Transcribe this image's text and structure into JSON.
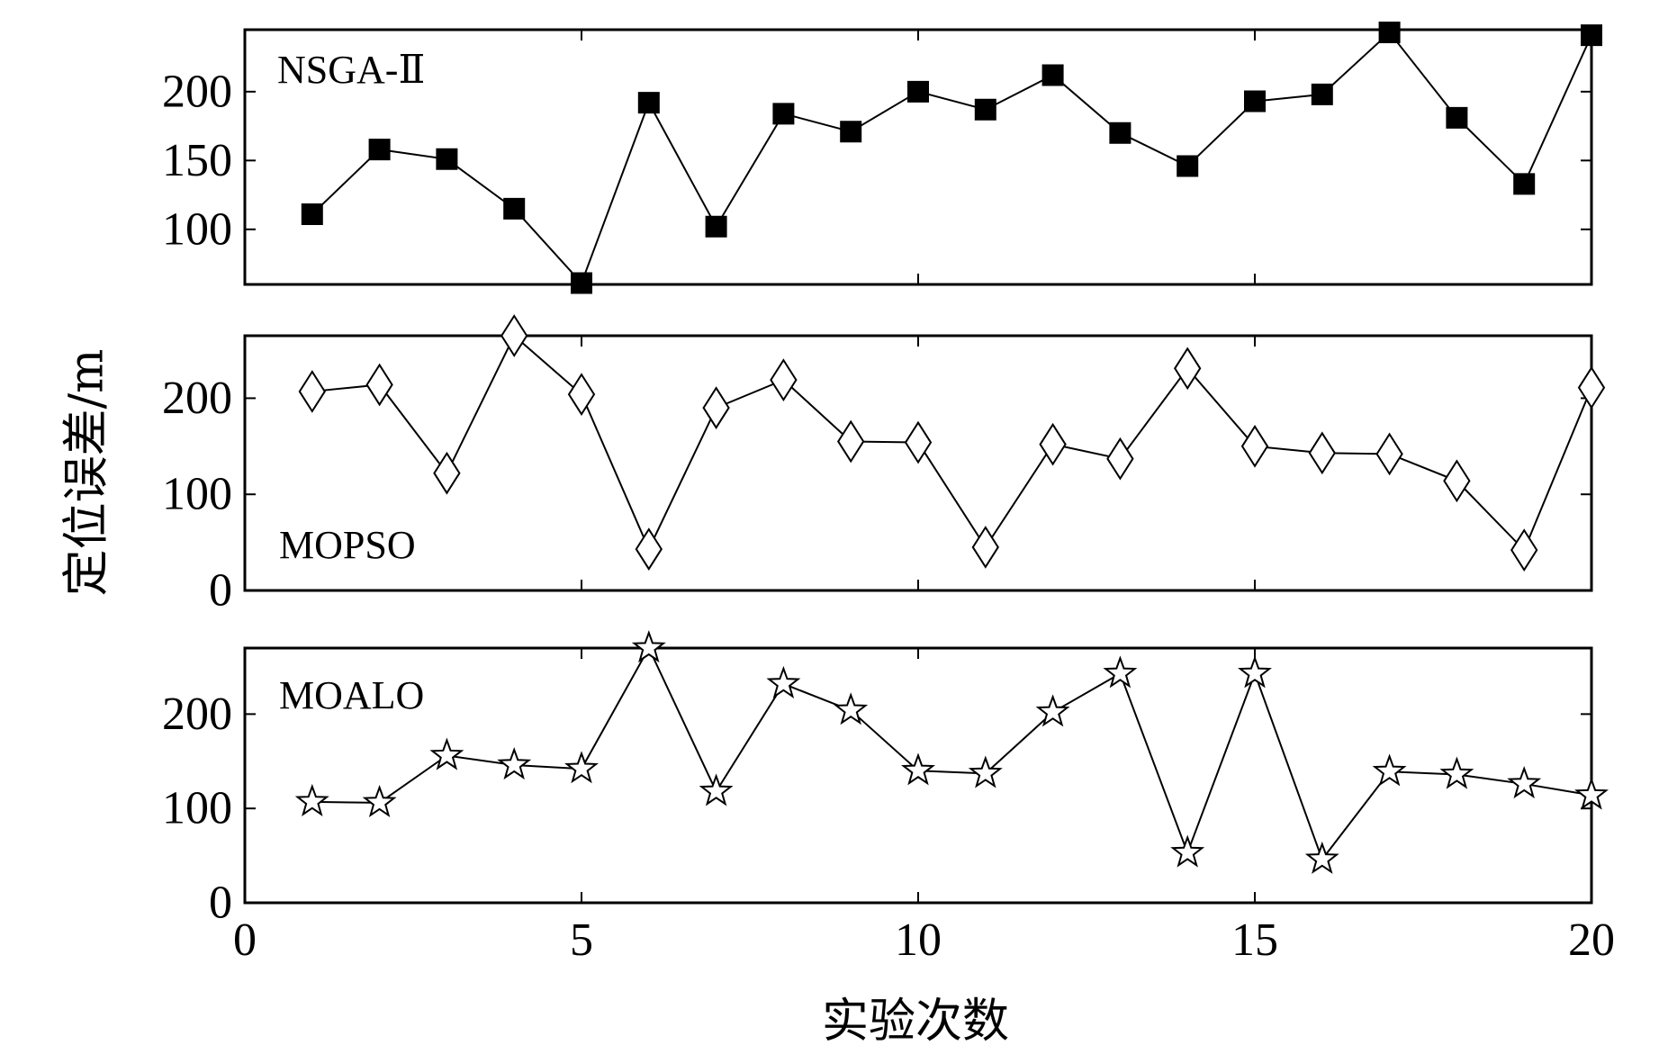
{
  "chart_data": {
    "type": "line",
    "xlabel": "实验次数",
    "ylabel": "定位误差/m",
    "x": [
      1,
      2,
      3,
      4,
      5,
      6,
      7,
      8,
      9,
      10,
      11,
      12,
      13,
      14,
      15,
      16,
      17,
      18,
      19,
      20
    ],
    "xlim": [
      0,
      20
    ],
    "xticks": [
      "0",
      "5",
      "10",
      "15",
      "20"
    ],
    "panels": [
      {
        "name": "NSGA-II",
        "label": "NSGA-Ⅱ",
        "marker": "square-filled",
        "ylim": [
          60,
          245
        ],
        "yticks": [
          "100",
          "150",
          "200"
        ],
        "values": [
          111,
          158,
          151,
          115,
          61,
          192,
          102,
          184,
          171,
          200,
          187,
          212,
          170,
          146,
          193,
          198,
          243,
          181,
          133,
          241
        ]
      },
      {
        "name": "MOPSO",
        "label": "MOPSO",
        "marker": "diamond-open",
        "ylim": [
          0,
          265
        ],
        "yticks": [
          "0",
          "100",
          "200"
        ],
        "values": [
          207,
          214,
          122,
          265,
          204,
          43,
          190,
          219,
          155,
          154,
          45,
          152,
          137,
          231,
          150,
          143,
          142,
          114,
          42,
          211
        ]
      },
      {
        "name": "MOALO",
        "label": "MOALO",
        "marker": "star-open",
        "ylim": [
          0,
          270
        ],
        "yticks": [
          "0",
          "100",
          "200"
        ],
        "values": [
          107,
          106,
          156,
          146,
          142,
          270,
          118,
          232,
          204,
          140,
          137,
          202,
          243,
          53,
          243,
          46,
          139,
          136,
          126,
          114
        ]
      }
    ]
  }
}
